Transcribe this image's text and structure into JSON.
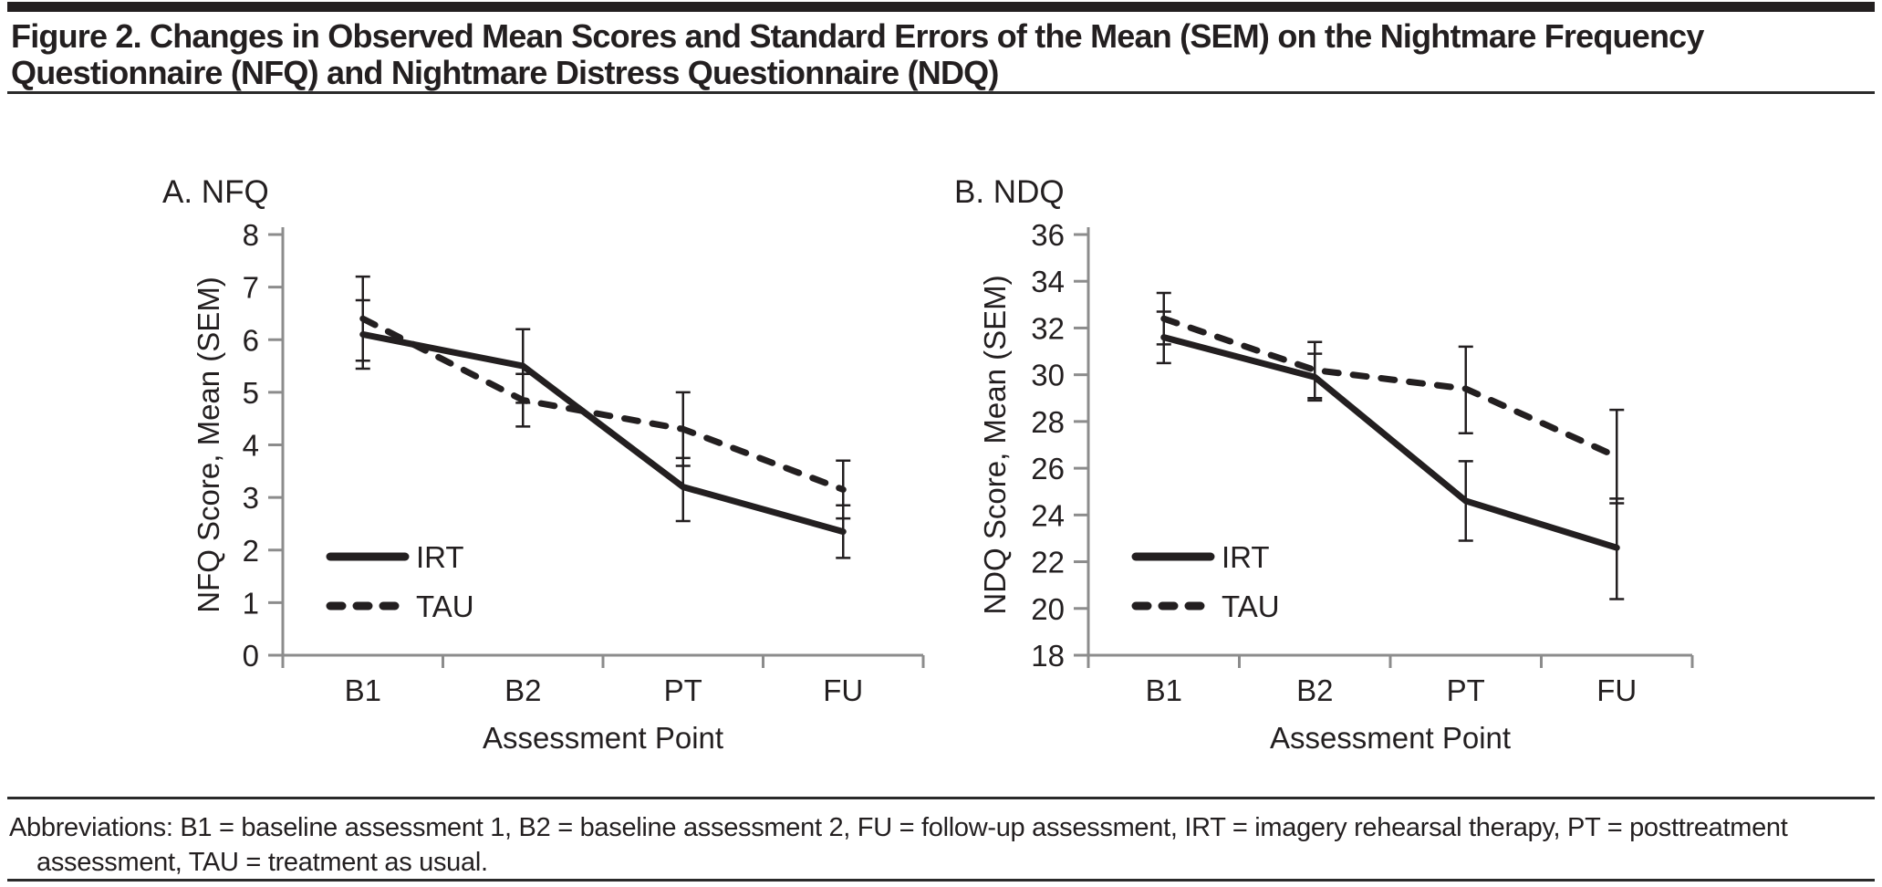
{
  "header": {
    "title_lines": [
      "Figure 2. Changes in Observed Mean Scores and Standard Errors of the Mean (SEM) on the Nightmare Frequency",
      "Questionnaire (NFQ) and Nightmare Distress Questionnaire (NDQ)"
    ]
  },
  "chart_data": [
    {
      "type": "line",
      "panel_label": "A. NFQ",
      "title": "A. NFQ",
      "xlabel": "Assessment Point",
      "ylabel": "NFQ Score, Mean (SEM)",
      "categories": [
        "B1",
        "B2",
        "PT",
        "FU"
      ],
      "ylim": [
        0,
        8
      ],
      "ytick_step": 1,
      "grid": false,
      "error_bars": "SEM",
      "legend_position": "lower-left",
      "legend": [
        "IRT",
        "TAU"
      ],
      "series": [
        {
          "name": "IRT",
          "line_style": "solid",
          "values": [
            6.1,
            5.5,
            3.2,
            2.35
          ],
          "err_low": [
            5.45,
            4.8,
            2.55,
            1.85
          ],
          "err_high": [
            6.75,
            6.2,
            3.75,
            2.85
          ]
        },
        {
          "name": "TAU",
          "line_style": "dashed",
          "values": [
            6.4,
            4.85,
            4.3,
            3.15
          ],
          "err_low": [
            5.6,
            4.35,
            3.6,
            2.6
          ],
          "err_high": [
            7.2,
            5.35,
            5.0,
            3.7
          ]
        }
      ]
    },
    {
      "type": "line",
      "panel_label": "B. NDQ",
      "title": "B. NDQ",
      "xlabel": "Assessment Point",
      "ylabel": "NDQ Score, Mean (SEM)",
      "categories": [
        "B1",
        "B2",
        "PT",
        "FU"
      ],
      "ylim": [
        18,
        36
      ],
      "ytick_step": 2,
      "grid": false,
      "error_bars": "SEM",
      "legend_position": "lower-left",
      "legend": [
        "IRT",
        "TAU"
      ],
      "series": [
        {
          "name": "IRT",
          "line_style": "solid",
          "values": [
            31.6,
            29.9,
            24.6,
            22.6
          ],
          "err_low": [
            30.5,
            28.9,
            22.9,
            20.4
          ],
          "err_high": [
            32.7,
            30.9,
            26.3,
            24.7
          ]
        },
        {
          "name": "TAU",
          "line_style": "dashed",
          "values": [
            32.4,
            30.2,
            29.4,
            26.5
          ],
          "err_low": [
            31.3,
            29.0,
            27.5,
            24.5
          ],
          "err_high": [
            33.5,
            31.4,
            31.2,
            28.5
          ]
        }
      ]
    }
  ],
  "footer": {
    "lines": [
      "Abbreviations: B1 = baseline assessment 1, B2 = baseline assessment 2, FU = follow-up assessment, IRT = imagery rehearsal therapy, PT = posttreatment",
      "assessment, TAU = treatment as usual."
    ]
  },
  "colors": {
    "text": "#231f20",
    "axis": "#8c8c8c",
    "line": "#231f20"
  }
}
